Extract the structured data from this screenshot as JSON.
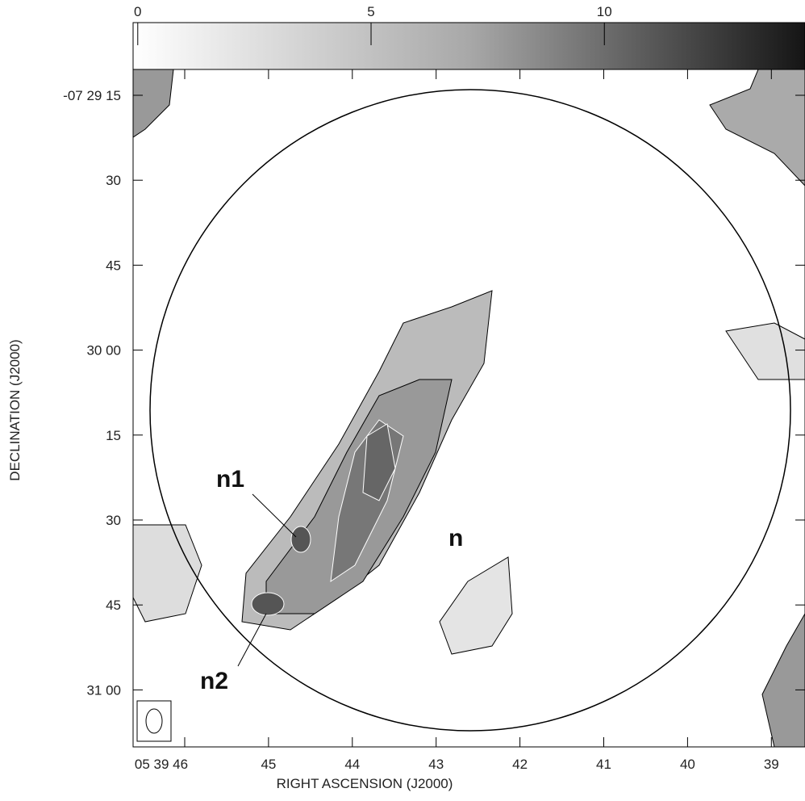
{
  "colorbar": {
    "lim": [
      -0.1,
      14.3
    ],
    "ticks": [
      0,
      5,
      10
    ]
  },
  "y_axis": {
    "label": "DECLINATION (J2000)",
    "ticks": [
      "-07 29 15",
      "30",
      "45",
      "30 00",
      "15",
      "30",
      "45",
      "31 00"
    ]
  },
  "x_axis": {
    "label": "RIGHT ASCENSION (J2000)",
    "ticks": [
      "05 39 46",
      "45",
      "44",
      "43",
      "42",
      "41",
      "40",
      "39"
    ]
  },
  "annotations": {
    "n1": "n1",
    "n2": "n2",
    "n": "n"
  }
}
